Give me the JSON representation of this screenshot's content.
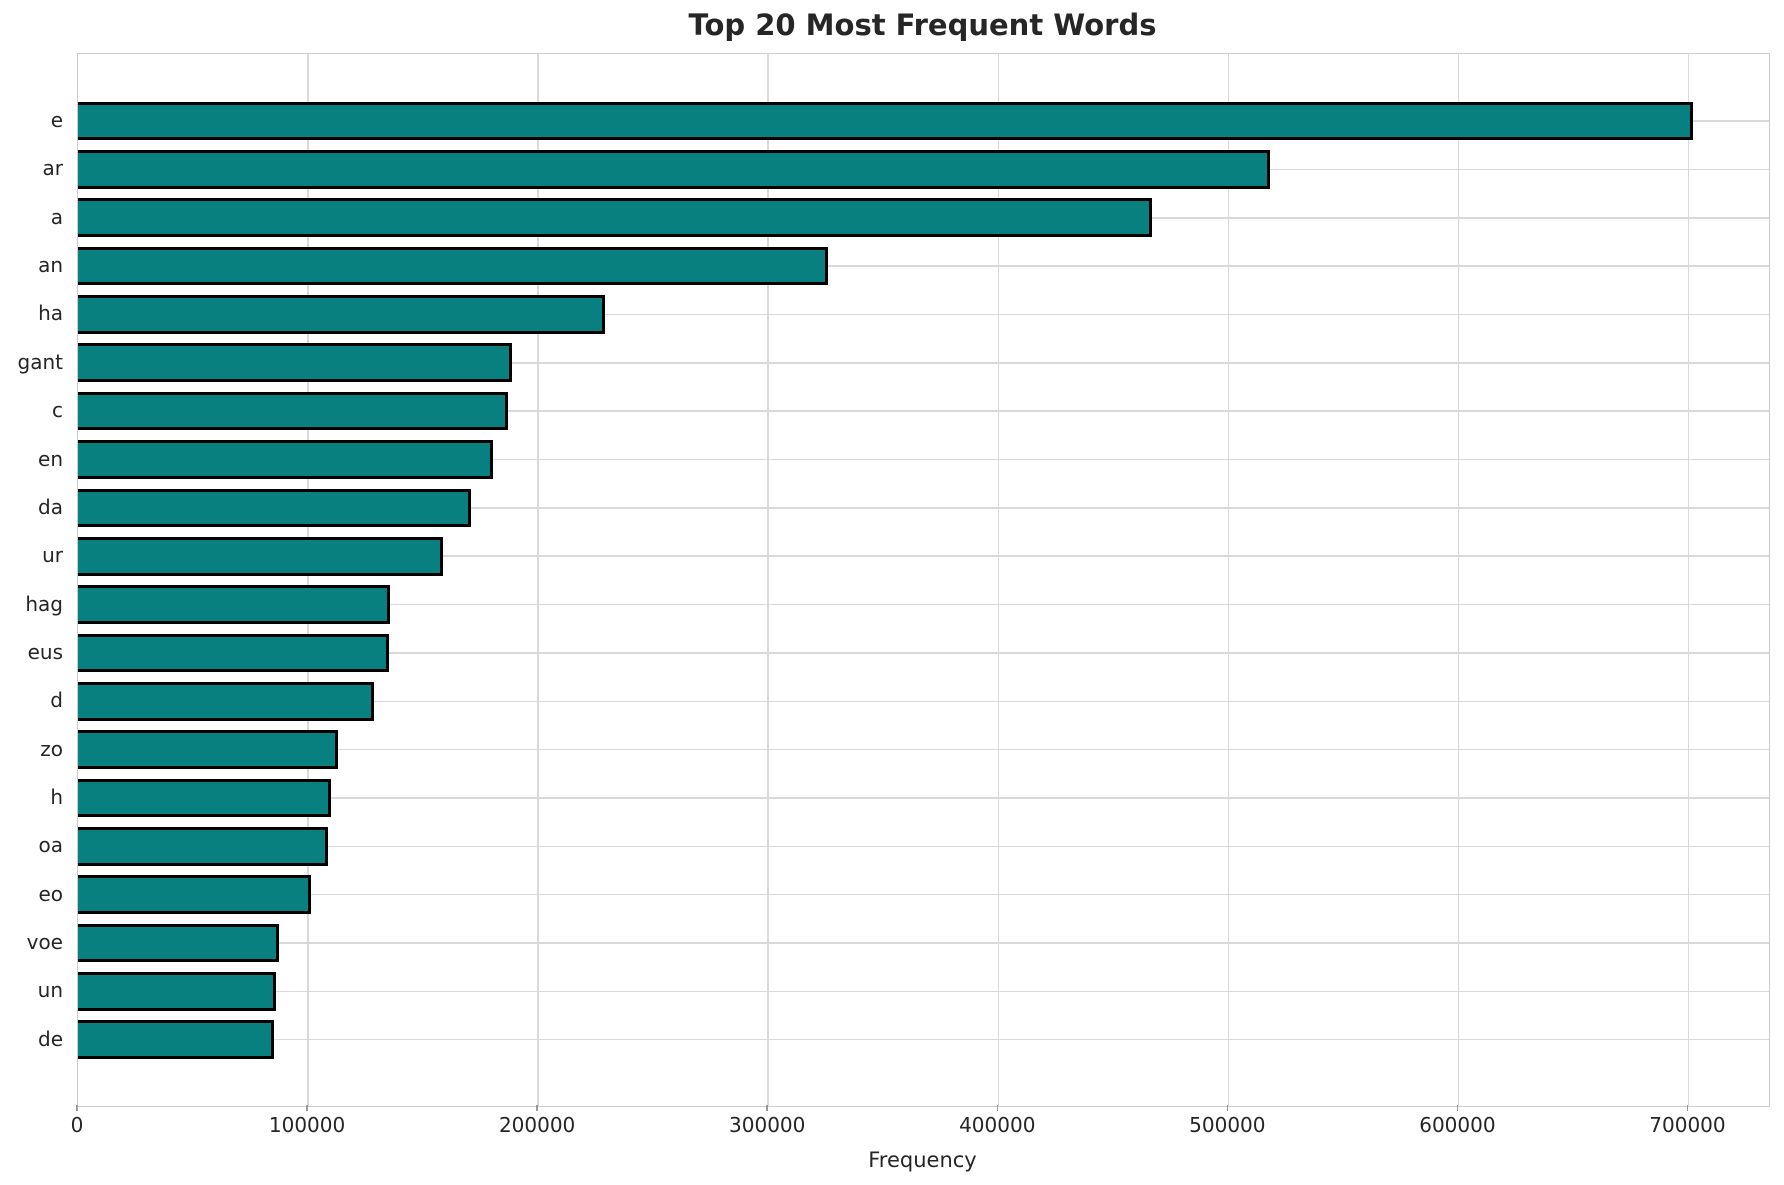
{
  "chart_data": {
    "type": "bar",
    "orientation": "horizontal",
    "title": "Top 20 Most Frequent Words",
    "xlabel": "Frequency",
    "ylabel": "",
    "categories": [
      "e",
      "ar",
      "a",
      "an",
      "ha",
      "gant",
      "c",
      "en",
      "da",
      "ur",
      "hag",
      "eus",
      "d",
      "zo",
      "h",
      "oa",
      "eo",
      "voe",
      "un",
      "de"
    ],
    "values": [
      702000,
      518000,
      467000,
      326000,
      229000,
      188500,
      187000,
      180500,
      171000,
      158500,
      135500,
      135000,
      128500,
      113200,
      110000,
      108700,
      101200,
      87500,
      86000,
      85200
    ],
    "x_ticks": [
      0,
      100000,
      200000,
      300000,
      400000,
      500000,
      600000,
      700000
    ],
    "x_tick_labels": [
      "0",
      "100000",
      "200000",
      "300000",
      "400000",
      "500000",
      "600000",
      "700000"
    ],
    "xlim": [
      0,
      735000
    ],
    "grid": true,
    "legend": false,
    "colors": {
      "bar_fill": "#088080",
      "bar_edge": "#000000",
      "grid_line": "#d9d9d9",
      "spine": "#cccccc",
      "text": "#262626",
      "background": "#ffffff"
    }
  }
}
